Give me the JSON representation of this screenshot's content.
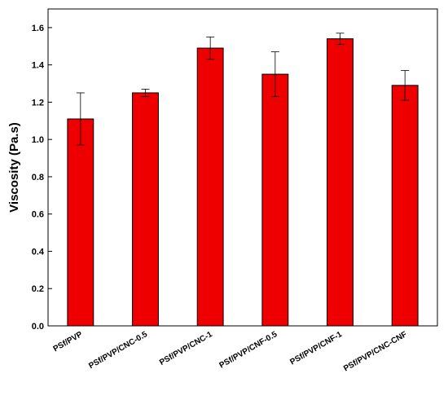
{
  "chart_data": {
    "type": "bar",
    "title": "",
    "xlabel": "",
    "ylabel": "Viscosity (Pa.s)",
    "ylim": [
      0,
      1.7
    ],
    "yticks": [
      0.0,
      0.2,
      0.4,
      0.6,
      0.8,
      1.0,
      1.2,
      1.4,
      1.6
    ],
    "ytick_labels": [
      "0.0",
      "0.2",
      "0.4",
      "0.6",
      "0.8",
      "1.0",
      "1.2",
      "1.4",
      "1.6"
    ],
    "categories": [
      "PSf/PVP",
      "PSf/PVP/CNC-0.5",
      "PSf/PVP/CNC-1",
      "PSf/PVP/CNF-0.5",
      "PSf/PVP/CNF-1",
      "PSf/PVP/CNC-CNF"
    ],
    "values": [
      1.11,
      1.25,
      1.49,
      1.35,
      1.54,
      1.29
    ],
    "errors": [
      0.14,
      0.02,
      0.06,
      0.12,
      0.03,
      0.08
    ],
    "bar_color": "#ee0000",
    "grid": false,
    "legend": "none"
  }
}
